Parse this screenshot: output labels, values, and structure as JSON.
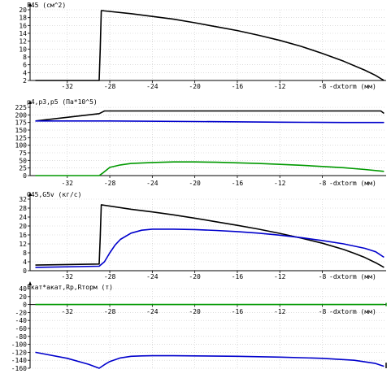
{
  "chart_data": [
    {
      "type": "line",
      "title": "F45 (см^2)",
      "xlabel": "-dxtorm (мм)",
      "ylabel": "",
      "xlim": [
        -35.5,
        -2
      ],
      "ylim": [
        2,
        20
      ],
      "yticks": [
        2,
        4,
        6,
        8,
        10,
        12,
        14,
        16,
        18,
        20
      ],
      "xticks": [
        -32,
        -28,
        -24,
        -20,
        -16,
        -12,
        -8
      ],
      "grid": true,
      "series": [
        {
          "color": "#000000",
          "x": [
            -35,
            -29,
            -28.9,
            -28.8,
            -26,
            -24,
            -22,
            -20,
            -18,
            -16,
            -14,
            -12,
            -10,
            -8,
            -6,
            -4,
            -3,
            -2.4,
            -2.2
          ],
          "y": [
            2,
            2,
            10,
            19.8,
            19,
            18.3,
            17.6,
            16.7,
            15.7,
            14.7,
            13.5,
            12.2,
            10.7,
            8.9,
            6.9,
            4.6,
            3.3,
            2.3,
            2
          ]
        }
      ]
    },
    {
      "type": "line",
      "title": "p4,p3,p5 (Па*10^5)",
      "xlabel": "-dxtorm (мм)",
      "ylabel": "",
      "xlim": [
        -35.5,
        -2
      ],
      "ylim": [
        0,
        225
      ],
      "yticks": [
        0,
        25,
        50,
        75,
        100,
        125,
        150,
        175,
        200,
        225
      ],
      "xticks": [
        -32,
        -28,
        -24,
        -20,
        -16,
        -12,
        -8
      ],
      "grid": true,
      "series": [
        {
          "color": "#000000",
          "x": [
            -35,
            -29,
            -28.5,
            -2.5,
            -2.2
          ],
          "y": [
            180,
            204,
            213,
            213,
            205
          ]
        },
        {
          "color": "#0000cc",
          "x": [
            -35,
            -28,
            -20,
            -12,
            -6,
            -2.2
          ],
          "y": [
            180,
            180,
            178,
            176,
            175,
            175
          ]
        },
        {
          "color": "#009900",
          "x": [
            -35,
            -29,
            -28.6,
            -28,
            -27,
            -26,
            -24,
            -22,
            -20,
            -18,
            -16,
            -14,
            -12,
            -10,
            -8,
            -6,
            -4,
            -2.2
          ],
          "y": [
            0,
            0,
            10,
            27,
            35,
            40,
            43,
            45,
            45,
            44,
            42,
            40,
            37,
            34,
            30,
            26,
            20,
            14
          ]
        }
      ]
    },
    {
      "type": "line",
      "title": "G45,G5v (кг/с)",
      "xlabel": "-dxtorm (мм)",
      "ylabel": "",
      "xlim": [
        -35.5,
        -2
      ],
      "ylim": [
        0,
        32
      ],
      "yticks": [
        0,
        4,
        8,
        12,
        16,
        20,
        24,
        28,
        32
      ],
      "xticks": [
        -32,
        -28,
        -24,
        -20,
        -16,
        -12,
        -8
      ],
      "grid": true,
      "series": [
        {
          "color": "#000000",
          "x": [
            -35,
            -29,
            -28.9,
            -28.8,
            -26,
            -24,
            -22,
            -20,
            -18,
            -16,
            -14,
            -12,
            -10,
            -8,
            -6,
            -5,
            -4,
            -3,
            -2.5,
            -2.2
          ],
          "y": [
            2.5,
            3,
            15,
            29.5,
            27.5,
            26.3,
            25,
            23.5,
            21.9,
            20.3,
            18.6,
            16.7,
            14.6,
            12.3,
            9.5,
            7.8,
            5.9,
            3.6,
            2.3,
            1.5
          ]
        },
        {
          "color": "#0000cc",
          "x": [
            -35,
            -29,
            -28.5,
            -28,
            -27.5,
            -27,
            -26,
            -25,
            -24,
            -22,
            -20,
            -18,
            -16,
            -14,
            -12,
            -10,
            -8,
            -6,
            -4,
            -3,
            -2.2
          ],
          "y": [
            1.5,
            2,
            4,
            8,
            11.5,
            14,
            16.8,
            18.1,
            18.6,
            18.6,
            18.4,
            18,
            17.5,
            16.8,
            15.9,
            14.8,
            13.5,
            12,
            10,
            8.5,
            6
          ]
        }
      ]
    },
    {
      "type": "line",
      "title": "Fкат*акат,Rp,Rторм (т)",
      "xlabel": "-dxtorm (мм)",
      "ylabel": "",
      "xlim": [
        -35.5,
        -2
      ],
      "ylim": [
        -160,
        40
      ],
      "yticks": [
        -160,
        -140,
        -120,
        -100,
        -80,
        -60,
        -40,
        -20,
        0,
        20,
        40
      ],
      "xticks": [
        -32,
        -28,
        -24,
        -20,
        -16,
        -12,
        -8
      ],
      "grid": true,
      "series": [
        {
          "color": "#009900",
          "x": [
            -35,
            -2.2
          ],
          "y": [
            0,
            0
          ]
        },
        {
          "color": "#0000cc",
          "x": [
            -35,
            -32,
            -30,
            -29,
            -28.5,
            -28,
            -27,
            -26,
            -25,
            -24,
            -22,
            -20,
            -16,
            -12,
            -8,
            -5,
            -3,
            -2.2
          ],
          "y": [
            -120,
            -135,
            -150,
            -160,
            -151,
            -143,
            -134,
            -130,
            -129,
            -128.5,
            -128.5,
            -129,
            -130,
            -132,
            -135,
            -140,
            -148,
            -155
          ]
        }
      ]
    }
  ]
}
